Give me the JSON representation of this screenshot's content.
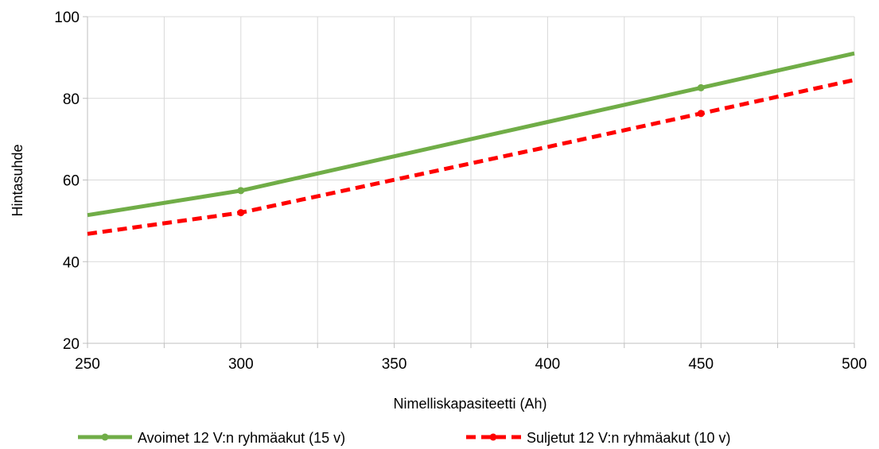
{
  "chart_data": {
    "type": "line",
    "title": "",
    "xlabel": "Nimelliskapasiteetti (Ah)",
    "ylabel": "Hintasuhde",
    "xlim": [
      250,
      500
    ],
    "ylim": [
      20,
      100
    ],
    "x_ticks": [
      250,
      300,
      350,
      400,
      450,
      500
    ],
    "x_minor_ticks": [
      275,
      325,
      375,
      425,
      475
    ],
    "y_ticks": [
      20,
      40,
      60,
      80,
      100
    ],
    "grid": true,
    "legend_position": "bottom",
    "series": [
      {
        "name": "Avoimet 12 V:n ryhmäakut (15 v)",
        "color": "#70ad47",
        "line_style": "solid",
        "points": [
          [
            250,
            51.4
          ],
          [
            300,
            57.4
          ],
          [
            400,
            74.2
          ],
          [
            450,
            82.6
          ],
          [
            500,
            91.0
          ]
        ],
        "markers": [
          [
            300,
            57.4
          ],
          [
            450,
            82.6
          ]
        ]
      },
      {
        "name": "Suljetut 12 V:n ryhmäakut (10 v)",
        "color": "#ff0000",
        "line_style": "dashed",
        "points": [
          [
            250,
            46.8
          ],
          [
            300,
            52.0
          ],
          [
            400,
            68.1
          ],
          [
            450,
            76.3
          ],
          [
            500,
            84.5
          ]
        ],
        "markers": [
          [
            300,
            52.0
          ],
          [
            450,
            76.3
          ]
        ]
      }
    ]
  }
}
